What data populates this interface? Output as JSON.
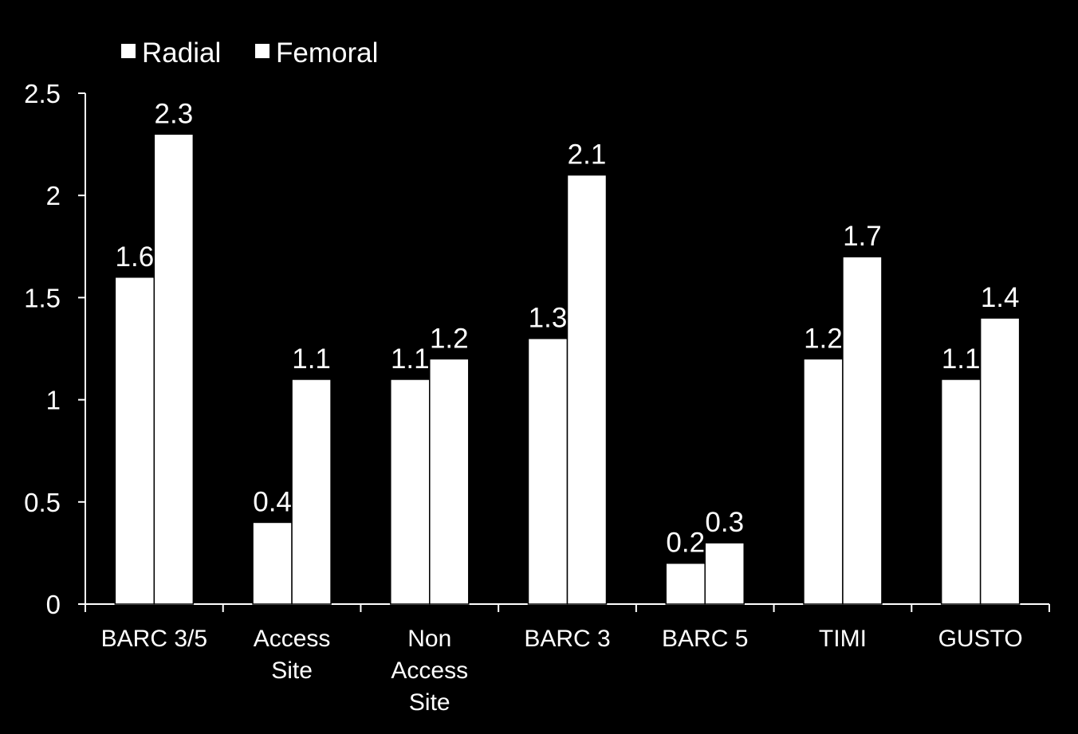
{
  "colors": {
    "background": "#000000",
    "foreground": "#ffffff",
    "radial_fill": "#ffffff",
    "femoral_fill": "#ffffff",
    "bar_stroke": "#000000"
  },
  "chart_data": {
    "type": "bar",
    "categories": [
      [
        "BARC 3/5"
      ],
      [
        "Access",
        "Site"
      ],
      [
        "Non",
        "Access",
        "Site"
      ],
      [
        "BARC 3"
      ],
      [
        "BARC 5"
      ],
      [
        "TIMI"
      ],
      [
        "GUSTO"
      ]
    ],
    "series": [
      {
        "name": "Radial",
        "values": [
          1.6,
          0.4,
          1.1,
          1.3,
          0.2,
          1.2,
          1.1
        ],
        "labels": [
          "1.6",
          "0.4",
          "1.1",
          "1.3",
          "0.2",
          "1.2",
          "1.1"
        ]
      },
      {
        "name": "Femoral",
        "values": [
          2.3,
          1.1,
          1.2,
          2.1,
          0.3,
          1.7,
          1.4
        ],
        "labels": [
          "2.3",
          "1.1",
          "1.2",
          "2.1",
          "0.3",
          "1.7",
          "1.4"
        ]
      }
    ],
    "ylim": [
      0,
      2.5
    ],
    "yticks": [
      "0",
      "0.5",
      "1",
      "1.5",
      "2",
      "2.5"
    ],
    "ytick_values": [
      0,
      0.5,
      1,
      1.5,
      2,
      2.5
    ],
    "title": "",
    "xlabel": "",
    "ylabel": "",
    "grid": false,
    "legend_position": "top-left"
  }
}
